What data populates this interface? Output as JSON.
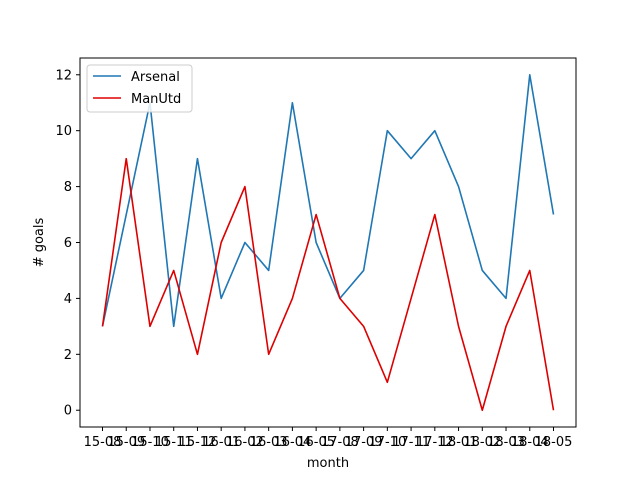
{
  "chart_data": {
    "type": "line",
    "title": "",
    "xlabel": "month",
    "ylabel": "# goals",
    "x": [
      "15-08",
      "15-09",
      "15-10",
      "15-11",
      "15-12",
      "16-01",
      "16-02",
      "16-03",
      "16-04",
      "16-05",
      "17-08",
      "17-09",
      "17-10",
      "17-11",
      "17-12",
      "18-01",
      "18-02",
      "18-03",
      "18-04",
      "18-05"
    ],
    "ylim": [
      -0.6,
      12.6
    ],
    "yticks": [
      0,
      2,
      4,
      6,
      8,
      10,
      12
    ],
    "grid": false,
    "legend_position": "upper-left",
    "series": [
      {
        "name": "Arsenal",
        "color": "#1f77b4",
        "values": [
          3,
          7,
          11,
          3,
          9,
          4,
          6,
          5,
          11,
          6,
          4,
          5,
          10,
          9,
          10,
          8,
          5,
          4,
          12,
          7
        ]
      },
      {
        "name": "ManUtd",
        "color": "#dd0000",
        "values": [
          3,
          9,
          3,
          5,
          2,
          6,
          8,
          2,
          4,
          7,
          4,
          3,
          1,
          4,
          7,
          3,
          0,
          3,
          5,
          0
        ]
      }
    ]
  }
}
